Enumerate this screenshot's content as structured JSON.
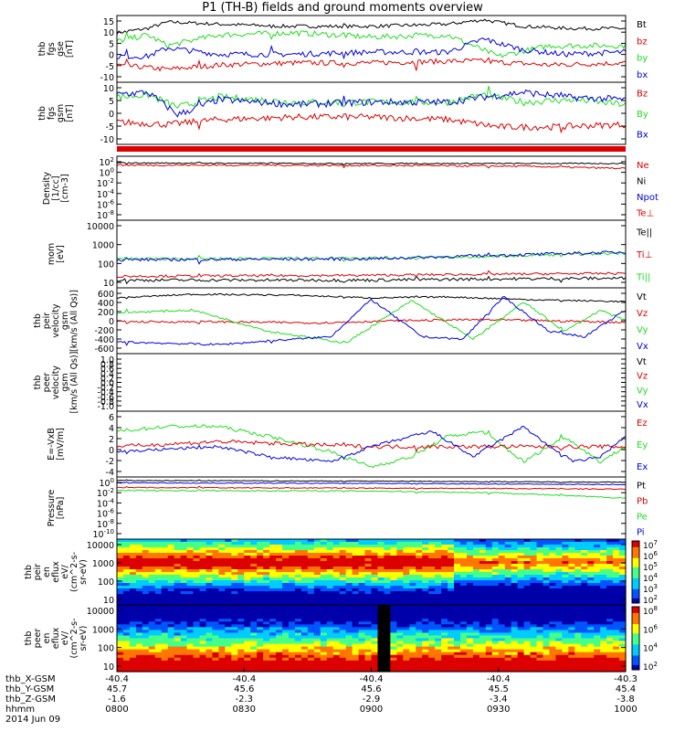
{
  "title": "P1 (TH-B) fields and ground moments overview",
  "colors": {
    "black": "#000000",
    "red": "#dd0000",
    "green": "#22dd22",
    "blue": "#0000dd"
  },
  "chart_data": [
    {
      "type": "line",
      "panel": "fgs_gse",
      "ylabel": [
        "thb",
        "fgs",
        "gse",
        "[nT]"
      ],
      "yticks": [
        "15",
        "10",
        "5",
        "0",
        "-5",
        "-10"
      ],
      "ylim": [
        -15,
        16
      ],
      "legend": [
        {
          "name": "Bt",
          "color": "#000000"
        },
        {
          "name": "bz",
          "color": "#dd0000"
        },
        {
          "name": "by",
          "color": "#22dd22"
        },
        {
          "name": "bx",
          "color": "#0000dd"
        }
      ],
      "series": [
        {
          "name": "Bt",
          "color": "#000000",
          "noise": 0.8,
          "x": [
            0,
            0.06,
            0.1,
            0.2,
            0.33,
            0.5,
            0.65,
            0.72,
            0.8,
            0.9,
            1
          ],
          "y": [
            8,
            10,
            13,
            12,
            11,
            11,
            12,
            14,
            11,
            10,
            10
          ]
        },
        {
          "name": "bz",
          "color": "#dd0000",
          "noise": 1.2,
          "x": [
            0,
            0.1,
            0.2,
            0.35,
            0.5,
            0.7,
            0.85,
            1
          ],
          "y": [
            -7,
            -9,
            -7,
            -6,
            -6,
            -5,
            -7,
            -6
          ]
        },
        {
          "name": "by",
          "color": "#22dd22",
          "noise": 1.3,
          "x": [
            0,
            0.06,
            0.1,
            0.2,
            0.35,
            0.5,
            0.65,
            0.75,
            0.85,
            1
          ],
          "y": [
            4,
            7,
            2,
            7,
            8,
            6,
            7,
            -3,
            2,
            2
          ]
        },
        {
          "name": "bx",
          "color": "#0000dd",
          "noise": 1.3,
          "x": [
            0,
            0.06,
            0.1,
            0.2,
            0.35,
            0.5,
            0.65,
            0.72,
            0.8,
            0.88,
            1
          ],
          "y": [
            -3,
            -3,
            1,
            -2,
            -2,
            -1,
            -1,
            5,
            0,
            -2,
            -1
          ]
        }
      ]
    },
    {
      "type": "line",
      "panel": "fgs_gsm",
      "ylabel": [
        "thb",
        "fgs",
        "gsm",
        "[nT]"
      ],
      "yticks": [
        "10",
        "5",
        "0",
        "-5",
        "-10"
      ],
      "ylim": [
        -14,
        11
      ],
      "legend": [
        {
          "name": "Bz",
          "color": "#dd0000"
        },
        {
          "name": "By",
          "color": "#22dd22"
        },
        {
          "name": "Bx",
          "color": "#0000dd"
        }
      ],
      "series": [
        {
          "name": "Bz",
          "color": "#dd0000",
          "noise": 1.3,
          "x": [
            0,
            0.1,
            0.2,
            0.35,
            0.5,
            0.65,
            0.75,
            0.85,
            1
          ],
          "y": [
            -5,
            -6,
            -4,
            -3,
            -3,
            -4,
            -7,
            -7,
            -6
          ]
        },
        {
          "name": "By",
          "color": "#22dd22",
          "noise": 1.4,
          "x": [
            0,
            0.06,
            0.12,
            0.2,
            0.35,
            0.5,
            0.65,
            0.72,
            0.8,
            0.9,
            1
          ],
          "y": [
            5,
            6,
            1,
            5,
            3,
            3,
            3,
            6,
            3,
            4,
            2
          ]
        },
        {
          "name": "Bx",
          "color": "#0000dd",
          "noise": 1.4,
          "x": [
            0,
            0.06,
            0.12,
            0.2,
            0.35,
            0.5,
            0.65,
            0.72,
            0.8,
            0.88,
            1
          ],
          "y": [
            6,
            7,
            -2,
            4,
            2,
            3,
            3,
            5,
            7,
            5,
            4
          ]
        }
      ]
    },
    {
      "type": "line",
      "panel": "density",
      "ylabel": [
        "Density",
        "[1/cc]",
        "[cm-3]"
      ],
      "yticks": [
        "10^2",
        "10^0",
        "10^-2",
        "10^-4",
        "10^-6",
        "10^-8"
      ],
      "ylim": [
        -9,
        2.5
      ],
      "legend": [
        {
          "name": "Ne",
          "color": "#dd0000"
        },
        {
          "name": "Ni",
          "color": "#000000"
        },
        {
          "name": "Npot",
          "color": "#0000dd"
        },
        {
          "name": "Te⊥",
          "color": "#dd0000"
        }
      ],
      "series": [
        {
          "name": "Ni",
          "color": "#000000",
          "noise": 0.1,
          "x": [
            0,
            0.45
          ],
          "y": [
            1.3,
            1.2
          ]
        },
        {
          "name": "Ne",
          "color": "#dd0000",
          "noise": 0.15,
          "x": [
            0,
            0.3,
            0.6,
            0.8,
            1
          ],
          "y": [
            0.9,
            0.9,
            0.8,
            0.7,
            0.3
          ]
        }
      ]
    },
    {
      "type": "line",
      "panel": "temperature",
      "ylabel": [
        "mom",
        "[eV]"
      ],
      "yticks": [
        "10000",
        "1000",
        "100",
        "10"
      ],
      "ylim": [
        0.7,
        4.2
      ],
      "legend": [
        {
          "name": "Te||",
          "color": "#000000"
        },
        {
          "name": "Ti⊥",
          "color": "#dd0000"
        },
        {
          "name": "Ti||",
          "color": "#22dd22"
        }
      ],
      "series": [
        {
          "name": "Te",
          "color": "#22dd22",
          "noise": 0.07,
          "x": [
            0,
            0.5,
            0.7,
            0.85,
            1
          ],
          "y": [
            2.2,
            2.25,
            2.3,
            2.4,
            2.5
          ]
        },
        {
          "name": "Ti",
          "color": "#0000dd",
          "noise": 0.08,
          "x": [
            0,
            0.5,
            0.7,
            0.85,
            1
          ],
          "y": [
            2.15,
            2.2,
            2.35,
            2.45,
            2.55
          ]
        },
        {
          "name": "Te||",
          "color": "#000000",
          "noise": 0.08,
          "x": [
            0,
            0.5,
            0.7,
            1
          ],
          "y": [
            1.1,
            1.1,
            1.15,
            1.2
          ]
        },
        {
          "name": "Ti⊥",
          "color": "#dd0000",
          "noise": 0.06,
          "x": [
            0,
            0.5,
            0.7,
            1
          ],
          "y": [
            1.3,
            1.35,
            1.4,
            1.45
          ]
        }
      ]
    },
    {
      "type": "line",
      "panel": "peir_velocity",
      "ylabel": [
        "thb",
        "peir",
        "velocity",
        "gsm",
        "[km/s (All Qs)]"
      ],
      "yticks": [
        "600",
        "400",
        "200",
        "0",
        "-200",
        "-400",
        "-600"
      ],
      "ylim": [
        -620,
        620
      ],
      "legend": [
        {
          "name": "Vt",
          "color": "#000000"
        },
        {
          "name": "Vz",
          "color": "#dd0000"
        },
        {
          "name": "Vy",
          "color": "#22dd22"
        },
        {
          "name": "Vx",
          "color": "#0000dd"
        }
      ],
      "series": [
        {
          "name": "Vt",
          "color": "#000000",
          "noise": 15,
          "x": [
            0,
            0.15,
            0.35,
            0.5,
            0.65,
            0.8,
            1
          ],
          "y": [
            430,
            500,
            480,
            430,
            450,
            400,
            360
          ]
        },
        {
          "name": "Vz",
          "color": "#dd0000",
          "noise": 20,
          "x": [
            0,
            0.2,
            0.4,
            0.55,
            0.7,
            0.85,
            1
          ],
          "y": [
            -20,
            -20,
            -40,
            0,
            20,
            0,
            -30
          ]
        },
        {
          "name": "Vy",
          "color": "#22dd22",
          "noise": 20,
          "x": [
            0,
            0.15,
            0.3,
            0.45,
            0.58,
            0.7,
            0.8,
            0.88,
            0.95,
            1
          ],
          "y": [
            150,
            200,
            -200,
            -420,
            380,
            -350,
            350,
            -200,
            200,
            0
          ]
        },
        {
          "name": "Vx",
          "color": "#0000dd",
          "noise": 20,
          "x": [
            0,
            0.2,
            0.3,
            0.42,
            0.5,
            0.6,
            0.68,
            0.76,
            0.85,
            0.92,
            1
          ],
          "y": [
            -400,
            -450,
            -380,
            -300,
            400,
            -300,
            -350,
            450,
            -200,
            -300,
            200
          ]
        }
      ]
    },
    {
      "type": "line",
      "panel": "peer_velocity",
      "ylabel": [
        "thb",
        "peer",
        "velocity",
        "gsm",
        "[km/s (All Qs)]"
      ],
      "yticks": [
        "1.0",
        "0.8",
        "0.6",
        "0.4",
        "0.2",
        "0.0",
        "-0.2",
        "-0.4",
        "-0.6",
        "-0.8",
        "-1.0"
      ],
      "ylim": [
        -1,
        1
      ],
      "legend": [
        {
          "name": "Vt",
          "color": "#000000"
        },
        {
          "name": "Vz",
          "color": "#dd0000"
        },
        {
          "name": "Vy",
          "color": "#22dd22"
        },
        {
          "name": "Vx",
          "color": "#0000dd"
        }
      ],
      "series": []
    },
    {
      "type": "line",
      "panel": "efield",
      "ylabel": [
        "E=-VxB",
        "[mV/m]"
      ],
      "yticks": [
        "6",
        "4",
        "2",
        "0",
        "-2",
        "-4"
      ],
      "ylim": [
        -6,
        7
      ],
      "legend": [
        {
          "name": "Ez",
          "color": "#dd0000"
        },
        {
          "name": "Ey",
          "color": "#22dd22"
        },
        {
          "name": "Ex",
          "color": "#0000dd"
        }
      ],
      "series": [
        {
          "name": "Ey",
          "color": "#22dd22",
          "noise": 0.35,
          "x": [
            0,
            0.1,
            0.2,
            0.3,
            0.42,
            0.5,
            0.58,
            0.65,
            0.72,
            0.8,
            0.88,
            0.95,
            1
          ],
          "y": [
            3,
            4,
            4,
            2,
            -1,
            -4,
            -2,
            2,
            3,
            -3,
            2,
            -3,
            0
          ]
        },
        {
          "name": "Ez",
          "color": "#dd0000",
          "noise": 0.4,
          "x": [
            0,
            0.2,
            0.5,
            0.75,
            1
          ],
          "y": [
            0,
            1,
            0,
            0,
            0
          ]
        },
        {
          "name": "Ex",
          "color": "#0000dd",
          "noise": 0.3,
          "x": [
            0,
            0.2,
            0.3,
            0.42,
            0.5,
            0.62,
            0.7,
            0.8,
            0.85,
            0.9,
            0.95,
            1
          ],
          "y": [
            -1,
            0,
            -2,
            -3,
            0,
            3,
            -2,
            4,
            0,
            -3,
            -2,
            2
          ]
        }
      ]
    },
    {
      "type": "line",
      "panel": "pressure",
      "ylabel": [
        "Pressure",
        "[nPa]"
      ],
      "yticks": [
        "10^0",
        "10^-2",
        "10^-4",
        "10^-6",
        "10^-8",
        "10^-10"
      ],
      "ylim": [
        -10.3,
        0.3
      ],
      "legend": [
        {
          "name": "Pt",
          "color": "#000000"
        },
        {
          "name": "Pb",
          "color": "#dd0000"
        },
        {
          "name": "Pe",
          "color": "#22dd22"
        },
        {
          "name": "Pi",
          "color": "#0000dd"
        }
      ],
      "series": [
        {
          "name": "Pt",
          "color": "#000000",
          "noise": 0.06,
          "x": [
            0,
            0.5,
            1
          ],
          "y": [
            -0.3,
            -0.4,
            -0.6
          ]
        },
        {
          "name": "Pi",
          "color": "#0000dd",
          "noise": 0.07,
          "x": [
            0,
            0.5,
            1
          ],
          "y": [
            -0.7,
            -0.8,
            -1.0
          ]
        },
        {
          "name": "Pb",
          "color": "#dd0000",
          "noise": 0.08,
          "x": [
            0,
            0.5,
            0.85,
            1
          ],
          "y": [
            -1.5,
            -1.6,
            -1.7,
            -1.8
          ]
        },
        {
          "name": "Pe",
          "color": "#22dd22",
          "noise": 0.1,
          "x": [
            0,
            0.5,
            0.75,
            1
          ],
          "y": [
            -2.0,
            -2.1,
            -2.4,
            -3.3
          ]
        }
      ]
    },
    {
      "type": "heatmap",
      "panel": "peir_eflux",
      "ylabel": [
        "thb",
        "peir",
        "en",
        "eflux",
        "eV/",
        "(cm^2-s-",
        "sr-eV)"
      ],
      "yticks": [
        "10000",
        "1000",
        "100",
        "10"
      ],
      "ylim": [
        0.7,
        4.3
      ],
      "colorbar": [
        "10^7",
        "10^6",
        "10^5",
        "10^4",
        "10^3",
        "10^2"
      ]
    },
    {
      "type": "heatmap",
      "panel": "peer_eflux",
      "ylabel": [
        "thb",
        "peer",
        "en",
        "eflux",
        "eV/",
        "(cm^2-s-",
        "sr-eV)"
      ],
      "yticks": [
        "10000",
        "1000",
        "100",
        "10"
      ],
      "ylim": [
        0.7,
        4.3
      ],
      "colorbar": [
        "10^8",
        "10^6",
        "10^4",
        "10^2"
      ]
    }
  ],
  "xaxis": {
    "rows": [
      {
        "label": "thb_X-GSM",
        "values": [
          "-40.4",
          "-40.4",
          "-40.4",
          "-40.4",
          "-40.3"
        ]
      },
      {
        "label": "thb_Y-GSM",
        "values": [
          "45.7",
          "45.6",
          "45.6",
          "45.5",
          "45.4"
        ]
      },
      {
        "label": "thb_Z-GSM",
        "values": [
          "-1.6",
          "-2.3",
          "-2.9",
          "-3.4",
          "-3.8"
        ]
      },
      {
        "label": "hhmm",
        "values": [
          "0800",
          "0830",
          "0900",
          "0930",
          "1000"
        ]
      }
    ],
    "date": "2014 Jun 09"
  }
}
